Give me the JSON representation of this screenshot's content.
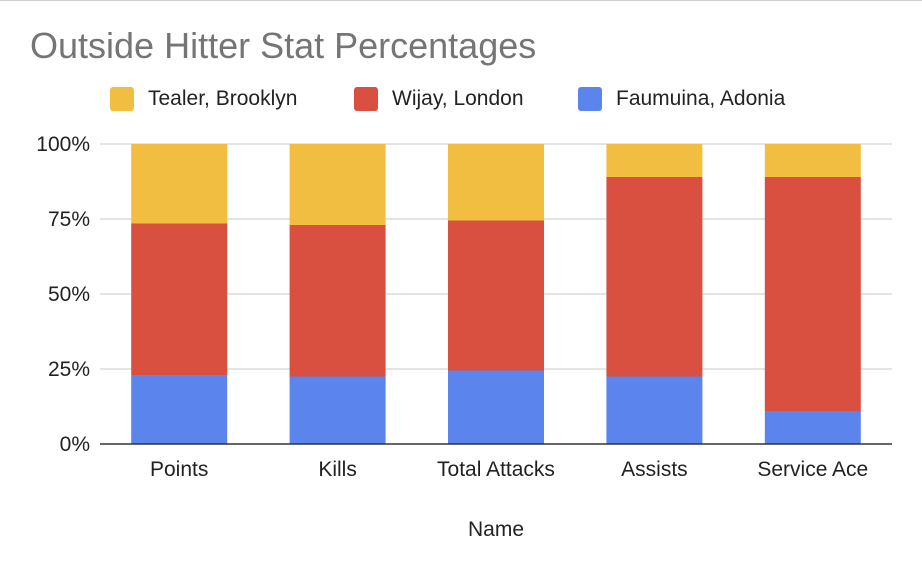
{
  "chart_data": {
    "type": "bar",
    "stacked": true,
    "percent_stacked": true,
    "title": "Outside Hitter Stat Percentages",
    "xlabel": "Name",
    "ylabel": "",
    "categories": [
      "Points",
      "Kills",
      "Total Attacks",
      "Assists",
      "Service Ace"
    ],
    "y_ticks": [
      "0%",
      "25%",
      "50%",
      "75%",
      "100%"
    ],
    "ylim": [
      0,
      100
    ],
    "grid": true,
    "legend_position": "top",
    "series": [
      {
        "name": "Faumuina, Adonia",
        "color": "#5b84ec",
        "values": [
          23,
          22.5,
          24.5,
          22.5,
          11
        ]
      },
      {
        "name": "Wijay, London",
        "color": "#d95041",
        "values": [
          50.5,
          50.5,
          50,
          66.5,
          78
        ]
      },
      {
        "name": "Tealer, Brooklyn",
        "color": "#f2be42",
        "values": [
          26.5,
          27,
          25.5,
          11,
          11
        ]
      }
    ]
  }
}
